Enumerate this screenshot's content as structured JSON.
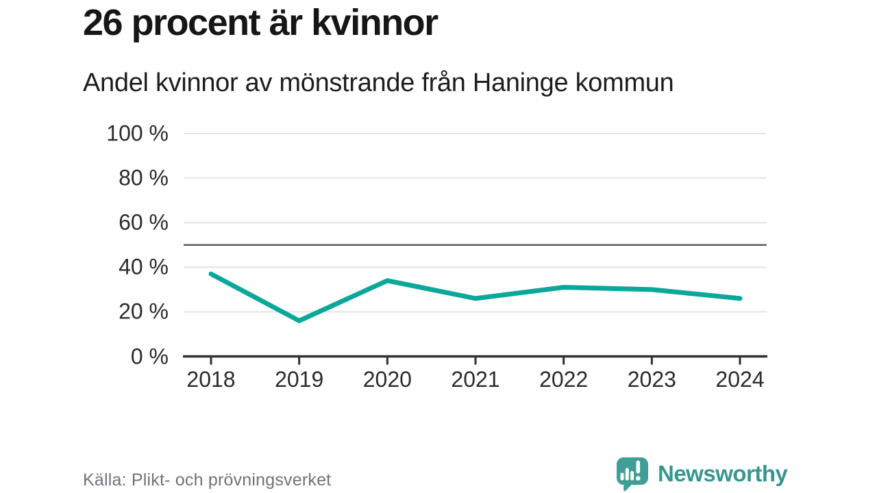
{
  "header": {
    "title": "26 procent är kvinnor",
    "subtitle": "Andel kvinnor av mönstrande från Haninge kommun"
  },
  "chart_data": {
    "type": "line",
    "x": [
      "2018",
      "2019",
      "2020",
      "2021",
      "2022",
      "2023",
      "2024"
    ],
    "series": [
      {
        "name": "Andel kvinnor",
        "values": [
          37,
          16,
          34,
          26,
          31,
          30,
          26
        ]
      }
    ],
    "unit": "%",
    "ylim": [
      0,
      100
    ],
    "yticks": [
      0,
      20,
      40,
      60,
      80,
      100
    ],
    "ytick_suffix": " %",
    "reference_line": {
      "value": 50,
      "color": "#5b5b64"
    },
    "line_color": "#0ca79b",
    "grid_color": "#e4e4e4",
    "axis_color": "#2f2f2f",
    "grid": true,
    "legend_position": "none",
    "xlabel": "",
    "ylabel": ""
  },
  "footer": {
    "source": "Källa: Plikt- och prövningsverket",
    "logo_text": "Newsworthy",
    "logo_color": "#3f9e96"
  }
}
